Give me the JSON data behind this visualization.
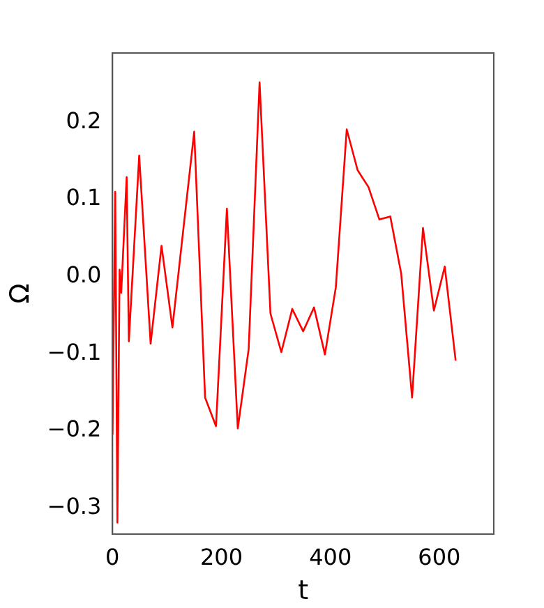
{
  "chart_data": {
    "type": "line",
    "xlabel": "t",
    "ylabel": "Ω",
    "x": [
      0,
      5,
      9,
      13,
      16,
      26,
      30,
      49,
      70,
      90,
      110,
      150,
      170,
      190,
      210,
      230,
      250,
      270,
      290,
      310,
      330,
      350,
      370,
      390,
      410,
      430,
      450,
      470,
      490,
      510,
      530,
      550,
      570,
      590,
      610,
      630
    ],
    "series": [
      {
        "color": "#ff0000",
        "values": [
          -0.205,
          0.11,
          -0.319,
          0.009,
          -0.021,
          0.129,
          -0.084,
          0.157,
          -0.087,
          0.04,
          -0.066,
          0.188,
          -0.157,
          -0.194,
          0.088,
          -0.197,
          -0.094,
          0.252,
          -0.048,
          -0.098,
          -0.042,
          -0.071,
          -0.04,
          -0.101,
          -0.014,
          0.191,
          0.138,
          0.116,
          0.074,
          0.078,
          0.004,
          -0.157,
          0.063,
          -0.044,
          0.013,
          -0.109
        ]
      }
    ],
    "xlim": [
      0,
      700
    ],
    "xticks": [
      0,
      200,
      400,
      600
    ],
    "ylim": [
      -0.334,
      0.29
    ],
    "yticks": [
      {
        "value": -0.3,
        "label": "−0.3"
      },
      {
        "value": -0.2,
        "label": "−0.2"
      },
      {
        "value": -0.1,
        "label": "−0.1"
      },
      {
        "value": 0,
        "label": "0.0"
      },
      0.1,
      0.2
    ],
    "grid": false,
    "legend": false,
    "marker": "none",
    "line_style": "solid"
  }
}
